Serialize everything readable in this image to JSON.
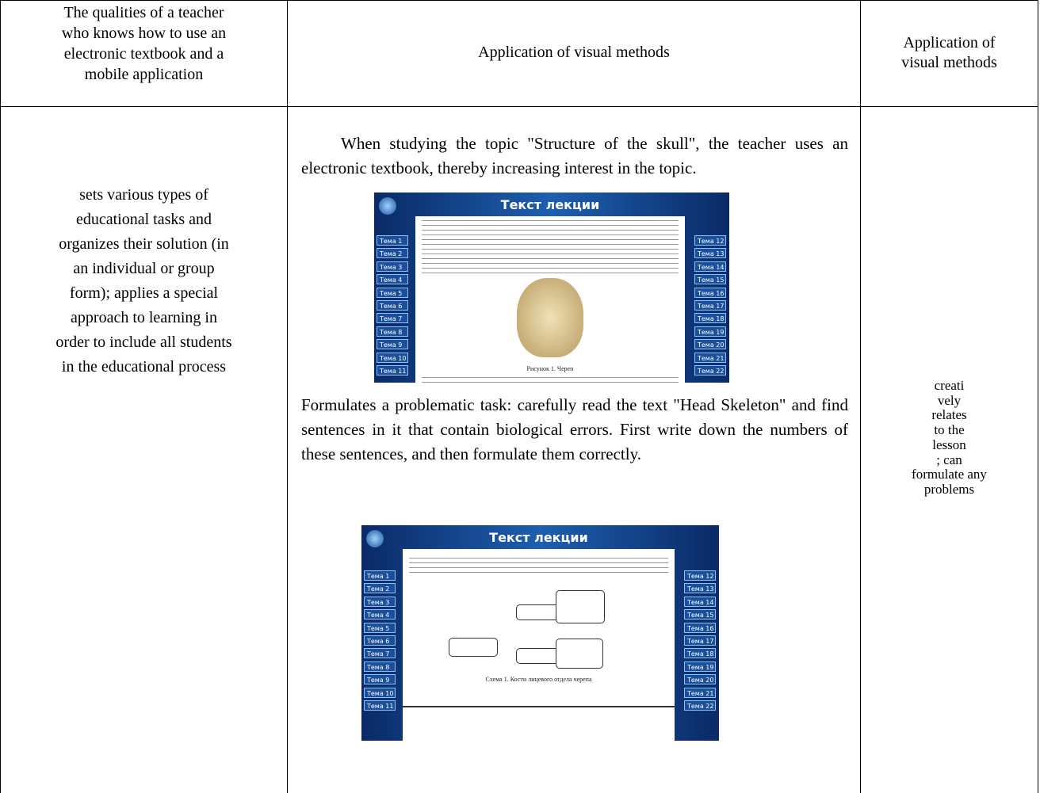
{
  "table": {
    "header": {
      "col1_lines": [
        "The qualities of a teacher",
        "who knows how to use an",
        "electronic textbook and a",
        "mobile application"
      ],
      "col2": "Application of visual methods",
      "col3_lines": [
        "Application of",
        "visual methods"
      ]
    },
    "row": {
      "col1_lines": [
        "sets various types of",
        "educational tasks and",
        "organizes their solution (in",
        "an individual or group",
        "form); applies a special",
        "approach to learning in",
        "order to include all students",
        "in the educational process"
      ],
      "col2": {
        "paragraph1": "When studying the topic \"Structure of the skull\", the teacher uses an electronic textbook, thereby increasing interest in the topic.",
        "paragraph2": "Formulates a problematic task: carefully read the text \"Head Skeleton\" and find sentences in it that contain biological errors. First write down the numbers of these sentences, and then formulate them correctly."
      },
      "col3_lines": [
        "creati",
        "vely",
        "relates",
        "to the",
        "lesson",
        "; can",
        "formulate any",
        "problems"
      ]
    }
  },
  "screenshots": [
    {
      "title": "Текст лекции",
      "topics_left": [
        "Тема 1",
        "Тема 2",
        "Тема 3",
        "Тема 4",
        "Тема 5",
        "Тема 6",
        "Тема 7",
        "Тема 8",
        "Тема 9",
        "Тема 10",
        "Тема 11"
      ],
      "topics_right": [
        "Тема 12",
        "Тема 13",
        "Тема 14",
        "Тема 15",
        "Тема 16",
        "Тема 17",
        "Тема 18",
        "Тема 19",
        "Тема 20",
        "Тема 21",
        "Тема 22"
      ],
      "caption": "Рисунок 1. Череп"
    },
    {
      "title": "Текст лекции",
      "topics_left": [
        "Тема 1",
        "Тема 2",
        "Тема 3",
        "Тема 4",
        "Тема 5",
        "Тема 6",
        "Тема 7",
        "Тема 8",
        "Тема 9",
        "Тема 10",
        "Тема 11"
      ],
      "topics_right": [
        "Тема 12",
        "Тема 13",
        "Тема 14",
        "Тема 15",
        "Тема 16",
        "Тема 17",
        "Тема 18",
        "Тема 19",
        "Тема 20",
        "Тема 21",
        "Тема 22"
      ],
      "caption": "Схема 1. Кости лицевого отдела черепа"
    }
  ]
}
